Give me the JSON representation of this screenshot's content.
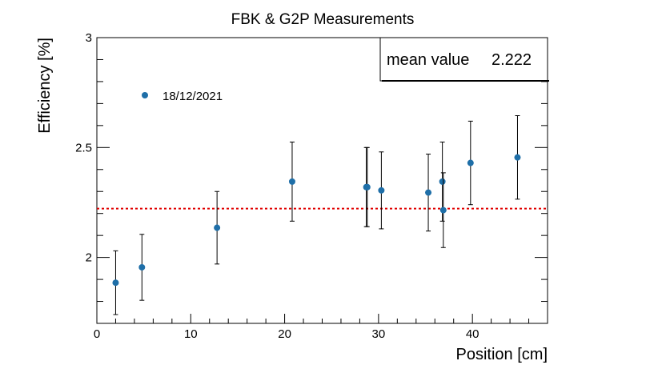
{
  "chart_data": {
    "type": "scatter",
    "title": "FBK & G2P Measurements",
    "xlabel": "Position [cm]",
    "ylabel": "Efficiency [%]",
    "xlim": [
      0,
      48
    ],
    "ylim": [
      1.7,
      3.0
    ],
    "x_ticks": [
      0,
      10,
      20,
      30,
      40
    ],
    "x_tick_labels": [
      "0",
      "10",
      "20",
      "30",
      "40"
    ],
    "y_ticks": [
      2.0,
      2.5,
      3.0
    ],
    "y_tick_labels": [
      "2",
      "2.5",
      "3"
    ],
    "grid": false,
    "series": [
      {
        "name": "18/12/2021",
        "color": "#1f6fa8",
        "points": [
          {
            "x": 2.0,
            "y": 1.885,
            "err": 0.145
          },
          {
            "x": 4.8,
            "y": 1.955,
            "err": 0.15
          },
          {
            "x": 12.8,
            "y": 2.135,
            "err": 0.165
          },
          {
            "x": 20.8,
            "y": 2.345,
            "err": 0.18
          },
          {
            "x": 28.7,
            "y": 2.32,
            "err": 0.18
          },
          {
            "x": 28.8,
            "y": 2.32,
            "err": 0.18
          },
          {
            "x": 30.3,
            "y": 2.305,
            "err": 0.175
          },
          {
            "x": 35.3,
            "y": 2.295,
            "err": 0.175
          },
          {
            "x": 36.8,
            "y": 2.345,
            "err": 0.18
          },
          {
            "x": 36.9,
            "y": 2.215,
            "err": 0.17
          },
          {
            "x": 39.8,
            "y": 2.43,
            "err": 0.19
          },
          {
            "x": 44.8,
            "y": 2.455,
            "err": 0.19
          }
        ]
      }
    ],
    "mean_line": {
      "value": 2.222,
      "color": "#e00000"
    },
    "stats_box": {
      "label": "mean value",
      "value": "2.222"
    },
    "legend_position": "top-left"
  }
}
